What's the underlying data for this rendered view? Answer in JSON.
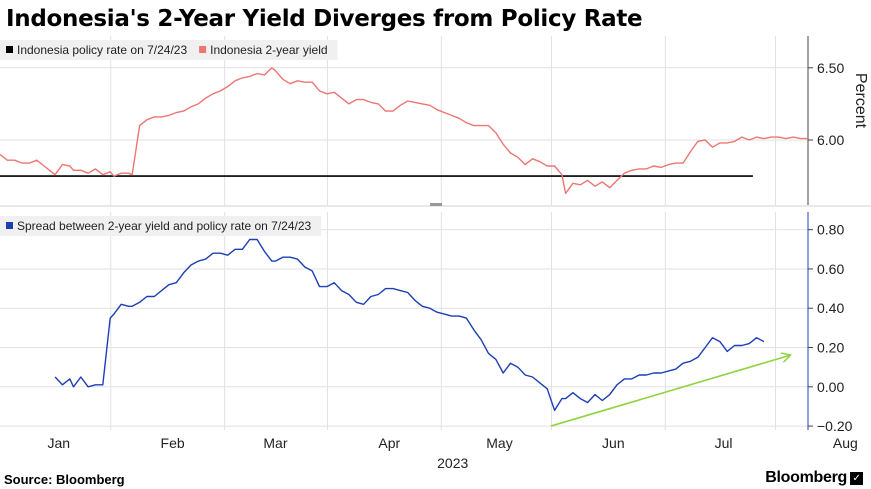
{
  "title": "Indonesia's 2-Year Yield Diverges from Policy Rate",
  "source": "Source: Bloomberg",
  "brand": "Bloomberg",
  "brand_badge": "✓",
  "chart_data": [
    {
      "type": "line",
      "title": "",
      "ylabel": "Percent",
      "ylim": [
        5.55,
        6.72
      ],
      "yticks": [
        6.5,
        6.0
      ],
      "ytick_labels": [
        "6.50",
        "6.00"
      ],
      "xlim": [
        0,
        220
      ],
      "x_ticks": [
        {
          "label": "Jan",
          "x": 16
        },
        {
          "label": "Feb",
          "x": 47
        },
        {
          "label": "Mar",
          "x": 75
        },
        {
          "label": "Apr",
          "x": 106
        },
        {
          "label": "May",
          "x": 136
        },
        {
          "label": "Jun",
          "x": 167
        },
        {
          "label": "Jul",
          "x": 197
        },
        {
          "label": "Aug",
          "x": 228
        }
      ],
      "series": [
        {
          "name": "Indonesia policy rate on 7/24/23",
          "color": "#000000",
          "x": [
            0,
            205
          ],
          "values": [
            5.75,
            5.75
          ]
        },
        {
          "name": "Indonesia 2-year yield",
          "color": "#ec7672",
          "x": [
            0,
            2,
            4,
            6,
            8,
            10,
            12,
            14,
            15,
            17,
            19,
            20,
            22,
            24,
            26,
            28,
            30,
            31,
            33,
            35,
            36,
            38,
            40,
            42,
            44,
            46,
            48,
            50,
            52,
            54,
            56,
            58,
            60,
            62,
            64,
            66,
            68,
            70,
            72,
            74,
            75,
            77,
            79,
            81,
            83,
            85,
            87,
            89,
            91,
            93,
            95,
            97,
            99,
            101,
            103,
            105,
            107,
            109,
            111,
            113,
            115,
            117,
            119,
            121,
            123,
            125,
            127,
            129,
            131,
            133,
            135,
            137,
            139,
            141,
            143,
            145,
            147,
            149,
            151,
            153,
            154,
            156,
            158,
            160,
            162,
            164,
            166,
            168,
            170,
            172,
            174,
            176,
            178,
            180,
            182,
            184,
            186,
            188,
            190,
            192,
            194,
            196,
            198,
            200,
            202,
            204,
            206,
            208,
            210,
            212,
            214,
            216,
            218,
            220
          ],
          "values": [
            5.9,
            5.86,
            5.86,
            5.84,
            5.84,
            5.86,
            5.82,
            5.78,
            5.76,
            5.83,
            5.82,
            5.79,
            5.79,
            5.77,
            5.8,
            5.76,
            5.78,
            5.75,
            5.77,
            5.77,
            5.76,
            6.1,
            6.14,
            6.16,
            6.16,
            6.17,
            6.19,
            6.2,
            6.23,
            6.25,
            6.29,
            6.32,
            6.34,
            6.37,
            6.41,
            6.43,
            6.44,
            6.46,
            6.45,
            6.5,
            6.48,
            6.42,
            6.39,
            6.41,
            6.4,
            6.4,
            6.34,
            6.32,
            6.33,
            6.29,
            6.25,
            6.28,
            6.28,
            6.26,
            6.25,
            6.2,
            6.2,
            6.24,
            6.27,
            6.26,
            6.25,
            6.24,
            6.21,
            6.19,
            6.17,
            6.15,
            6.12,
            6.1,
            6.1,
            6.1,
            6.05,
            5.97,
            5.91,
            5.88,
            5.83,
            5.87,
            5.85,
            5.82,
            5.82,
            5.76,
            5.63,
            5.7,
            5.69,
            5.72,
            5.68,
            5.71,
            5.67,
            5.72,
            5.77,
            5.79,
            5.8,
            5.8,
            5.82,
            5.81,
            5.83,
            5.84,
            5.84,
            5.92,
            5.99,
            6.0,
            5.95,
            5.98,
            5.98,
            5.99,
            6.02,
            6.0,
            6.02,
            6.01,
            6.02,
            6.02,
            6.01,
            6.02,
            6.01,
            6.01
          ]
        }
      ]
    },
    {
      "type": "line",
      "title": "",
      "ylabel": "",
      "ylim": [
        -0.22,
        0.89
      ],
      "yticks": [
        0.8,
        0.6,
        0.4,
        0.2,
        0.0,
        -0.2
      ],
      "ytick_labels": [
        "0.80",
        "0.60",
        "0.40",
        "0.20",
        "0.00",
        "−0.20"
      ],
      "xlim": [
        0,
        220
      ],
      "series": [
        {
          "name": "Spread between 2-year yield and policy rate on 7/24/23",
          "color": "#1c3fb5",
          "x": [
            15,
            17,
            19,
            20,
            22,
            24,
            26,
            28,
            30,
            31,
            33,
            35,
            36,
            38,
            40,
            42,
            44,
            46,
            48,
            50,
            52,
            54,
            56,
            58,
            60,
            62,
            64,
            66,
            68,
            70,
            72,
            74,
            75,
            77,
            79,
            81,
            83,
            85,
            87,
            89,
            91,
            93,
            95,
            97,
            99,
            101,
            103,
            105,
            107,
            109,
            111,
            113,
            115,
            117,
            119,
            121,
            123,
            125,
            127,
            129,
            131,
            133,
            135,
            137,
            139,
            141,
            143,
            145,
            147,
            149,
            151,
            153,
            154,
            156,
            158,
            160,
            162,
            164,
            166,
            168,
            170,
            172,
            174,
            176,
            178,
            180,
            182,
            184,
            186,
            188,
            190,
            192,
            194,
            196,
            198,
            200,
            202,
            204,
            206,
            208
          ],
          "values": [
            0.05,
            0.01,
            0.04,
            0.0,
            0.05,
            0.0,
            0.01,
            0.01,
            0.35,
            0.37,
            0.42,
            0.41,
            0.41,
            0.43,
            0.46,
            0.46,
            0.49,
            0.52,
            0.53,
            0.58,
            0.62,
            0.64,
            0.65,
            0.68,
            0.68,
            0.67,
            0.7,
            0.7,
            0.75,
            0.75,
            0.69,
            0.64,
            0.64,
            0.66,
            0.66,
            0.65,
            0.61,
            0.59,
            0.51,
            0.51,
            0.53,
            0.49,
            0.47,
            0.43,
            0.42,
            0.46,
            0.47,
            0.5,
            0.5,
            0.49,
            0.48,
            0.44,
            0.41,
            0.4,
            0.38,
            0.37,
            0.36,
            0.36,
            0.35,
            0.29,
            0.24,
            0.17,
            0.14,
            0.07,
            0.12,
            0.1,
            0.06,
            0.05,
            0.02,
            -0.01,
            -0.12,
            -0.06,
            -0.06,
            -0.03,
            -0.06,
            -0.08,
            -0.04,
            -0.07,
            -0.04,
            0.01,
            0.04,
            0.04,
            0.06,
            0.06,
            0.07,
            0.07,
            0.08,
            0.09,
            0.12,
            0.13,
            0.15,
            0.2,
            0.25,
            0.23,
            0.18,
            0.21,
            0.21,
            0.22,
            0.25,
            0.23
          ]
        }
      ],
      "trend_arrow": {
        "color": "#8fd43c",
        "from": [
          150,
          -0.2
        ],
        "to": [
          215,
          0.16
        ]
      }
    }
  ],
  "x_axis": {
    "year_label": "2023"
  }
}
